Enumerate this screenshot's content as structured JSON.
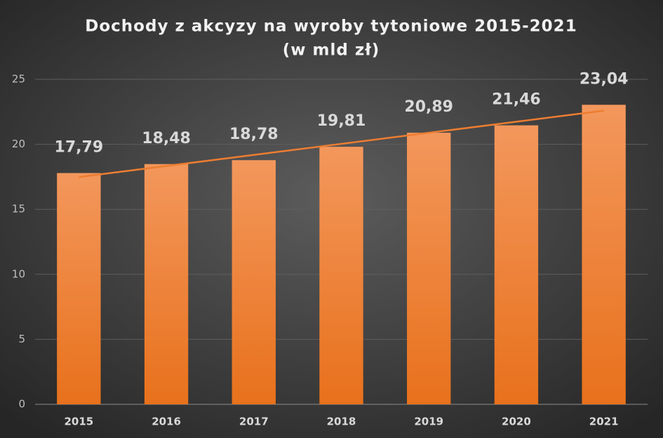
{
  "chart_data": {
    "type": "bar",
    "title": "Dochody z akcyzy na wyroby tytoniowe 2015-2021",
    "subtitle": "(w mld zł)",
    "categories": [
      "2015",
      "2016",
      "2017",
      "2018",
      "2019",
      "2020",
      "2021"
    ],
    "values": [
      17.79,
      18.48,
      18.78,
      19.81,
      20.89,
      21.46,
      23.04
    ],
    "value_labels": [
      "17,79",
      "18,48",
      "18,78",
      "19,81",
      "20,89",
      "21,46",
      "23,04"
    ],
    "color": "#ed7d31",
    "trendline": true,
    "trendline_color": "#ed7d31",
    "ylim": [
      0,
      25
    ],
    "yticks": [
      0,
      5,
      10,
      15,
      20,
      25
    ],
    "grid": true
  }
}
